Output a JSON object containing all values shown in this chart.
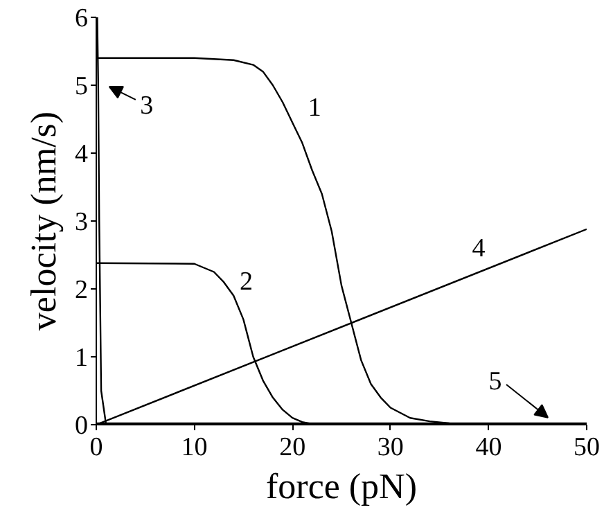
{
  "chart_data": {
    "type": "line",
    "xlabel": "force (pN)",
    "ylabel": "velocity (nm/s)",
    "xlim": [
      0,
      50
    ],
    "ylim": [
      0,
      6
    ],
    "xticks": [
      0,
      10,
      20,
      30,
      40,
      50
    ],
    "yticks": [
      0,
      1,
      2,
      3,
      4,
      5,
      6
    ],
    "grid": false,
    "marker": "none",
    "line_style": "solid",
    "series": [
      {
        "name": "1",
        "color": "#000000",
        "x": [
          0,
          10,
          14,
          16,
          17,
          18,
          19,
          20,
          21,
          22,
          23,
          24,
          25,
          26,
          27,
          28,
          29,
          30,
          32,
          34,
          36,
          38,
          40,
          50
        ],
        "values": [
          5.4,
          5.4,
          5.37,
          5.3,
          5.2,
          5.0,
          4.75,
          4.45,
          4.15,
          3.75,
          3.4,
          2.85,
          2.05,
          1.5,
          0.95,
          0.6,
          0.4,
          0.25,
          0.1,
          0.05,
          0.02,
          0,
          0,
          0
        ]
      },
      {
        "name": "2",
        "color": "#000000",
        "x": [
          0,
          10,
          12,
          13,
          14,
          15,
          16,
          17,
          18,
          19,
          20,
          21,
          22,
          25,
          50
        ],
        "values": [
          2.38,
          2.37,
          2.25,
          2.1,
          1.9,
          1.55,
          1.0,
          0.65,
          0.4,
          0.22,
          0.1,
          0.04,
          0.01,
          0,
          0
        ]
      },
      {
        "name": "3",
        "color": "#000000",
        "x": [
          0.1,
          0.2,
          0.3,
          0.5,
          1
        ],
        "values": [
          6,
          5,
          3,
          0.5,
          0
        ]
      },
      {
        "name": "4",
        "color": "#000000",
        "x": [
          0,
          50
        ],
        "values": [
          0,
          2.88
        ]
      },
      {
        "name": "5",
        "color": "#000000",
        "x": [
          0,
          50
        ],
        "values": [
          0.02,
          0.02
        ]
      }
    ]
  }
}
